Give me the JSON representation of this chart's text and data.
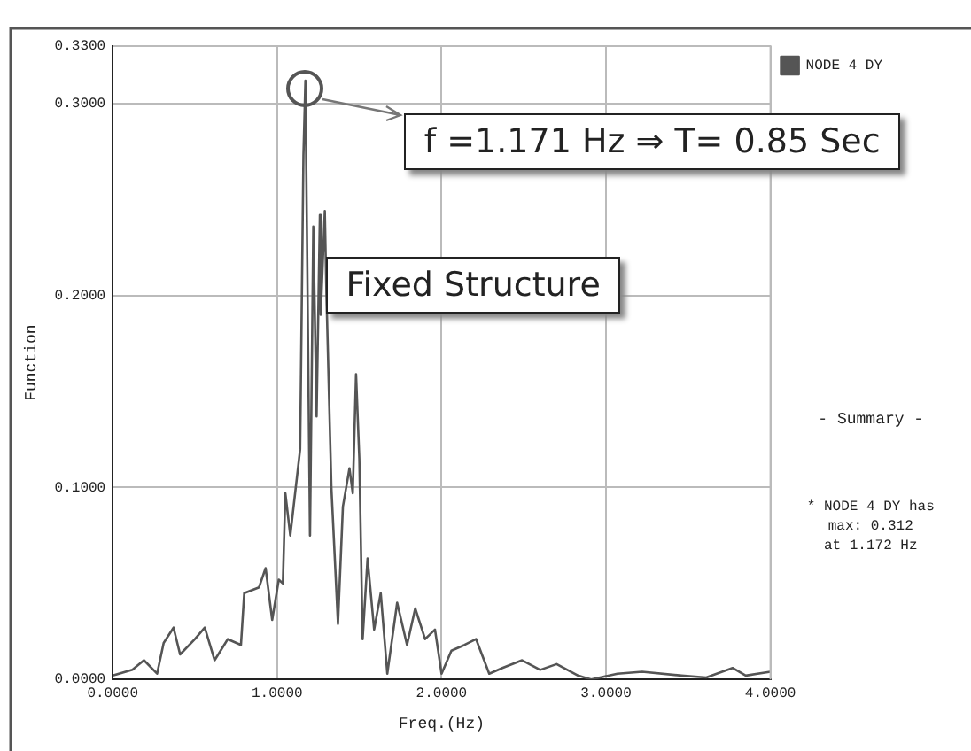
{
  "chart_data": {
    "type": "line",
    "xlabel": "Freq.(Hz)",
    "ylabel": "Function",
    "xlim": [
      0,
      4
    ],
    "ylim": [
      0,
      0.33
    ],
    "xticks": [
      {
        "value": 0,
        "label": "0.0000"
      },
      {
        "value": 1,
        "label": "1.0000"
      },
      {
        "value": 2,
        "label": "2.0000"
      },
      {
        "value": 3,
        "label": "3.0000"
      },
      {
        "value": 4,
        "label": "4.0000"
      }
    ],
    "yticks": [
      {
        "value": 0,
        "label": "0.0000"
      },
      {
        "value": 0.1,
        "label": "0.1000"
      },
      {
        "value": 0.2,
        "label": "0.2000"
      },
      {
        "value": 0.3,
        "label": "0.3000"
      },
      {
        "value": 0.33,
        "label": "0.3300"
      }
    ],
    "grid": true,
    "legend": "top right",
    "marker": "none",
    "line_style": "solid",
    "series": [
      {
        "name": "NODE 4 DY",
        "color": "#555555",
        "x": [
          0,
          0.12,
          0.19,
          0.27,
          0.31,
          0.37,
          0.41,
          0.5,
          0.56,
          0.62,
          0.7,
          0.78,
          0.8,
          0.89,
          0.93,
          0.97,
          1.01,
          1.035,
          1.05,
          1.08,
          1.1,
          1.14,
          1.16,
          1.172,
          1.2,
          1.22,
          1.24,
          1.26,
          1.265,
          1.29,
          1.3,
          1.33,
          1.37,
          1.4,
          1.44,
          1.46,
          1.48,
          1.5,
          1.52,
          1.55,
          1.59,
          1.63,
          1.67,
          1.73,
          1.79,
          1.84,
          1.9,
          1.96,
          2.0,
          2.06,
          2.14,
          2.21,
          2.29,
          2.37,
          2.49,
          2.6,
          2.7,
          2.83,
          2.91,
          3.07,
          3.22,
          3.46,
          3.61,
          3.77,
          3.85,
          4.0
        ],
        "values": [
          0.002,
          0.005,
          0.01,
          0.003,
          0.019,
          0.027,
          0.013,
          0.021,
          0.027,
          0.01,
          0.021,
          0.018,
          0.045,
          0.048,
          0.058,
          0.031,
          0.052,
          0.05,
          0.097,
          0.075,
          0.09,
          0.12,
          0.273,
          0.312,
          0.075,
          0.236,
          0.137,
          0.242,
          0.19,
          0.244,
          0.2,
          0.1,
          0.029,
          0.09,
          0.11,
          0.097,
          0.159,
          0.115,
          0.021,
          0.063,
          0.026,
          0.045,
          0.003,
          0.04,
          0.018,
          0.037,
          0.021,
          0.026,
          0.003,
          0.015,
          0.018,
          0.021,
          0.003,
          0.006,
          0.01,
          0.005,
          0.008,
          0.002,
          0,
          0.003,
          0.004,
          0.002,
          0.001,
          0.006,
          0.002,
          0.004
        ]
      }
    ],
    "annotations": [
      "f =1.171 Hz ⇒ T= 0.85 Sec",
      "Fixed Structure",
      "- Summary -",
      "* NODE 4 DY has",
      "max: 0.312",
      "at  1.172 Hz"
    ]
  }
}
